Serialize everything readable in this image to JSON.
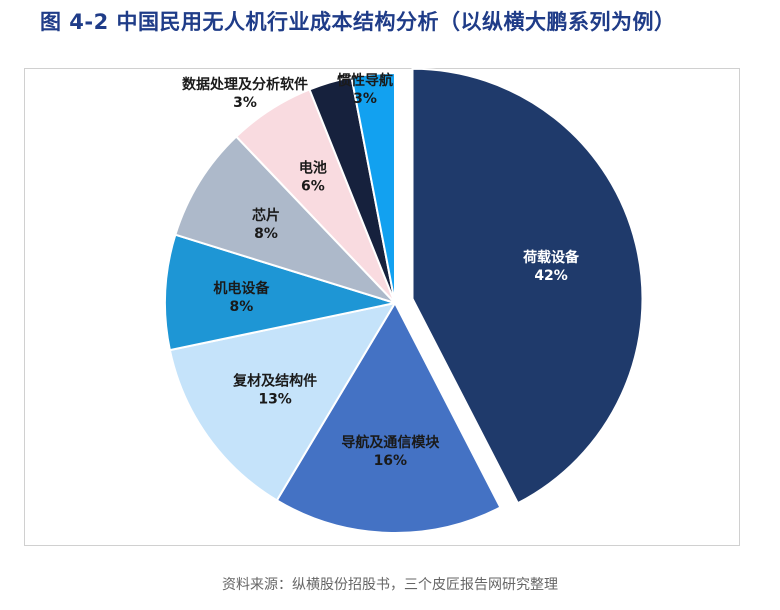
{
  "title": "图 4-2 中国民用无人机行业成本结构分析（以纵横大鹏系列为例）",
  "source": "资料来源：纵横股份招股书，三个皮匠报告网研究整理",
  "chart_data": {
    "type": "pie",
    "unit": "%",
    "slices": [
      {
        "name": "荷载设备",
        "value": 42,
        "value_label": "42%",
        "color": "#1f3a6b",
        "exploded": true
      },
      {
        "name": "导航及通信模块",
        "value": 16,
        "value_label": "16%",
        "color": "#4472c4",
        "exploded": false
      },
      {
        "name": "复材及结构件",
        "value": 13,
        "value_label": "13%",
        "color": "#c5e3fa",
        "exploded": false
      },
      {
        "name": "机电设备",
        "value": 8,
        "value_label": "8%",
        "color": "#1e96d5",
        "exploded": false
      },
      {
        "name": "芯片",
        "value": 8,
        "value_label": "8%",
        "color": "#adb9ca",
        "exploded": false
      },
      {
        "name": "电池",
        "value": 6,
        "value_label": "6%",
        "color": "#f9dbe0",
        "exploded": false
      },
      {
        "name": "数据处理及分析软件",
        "value": 3,
        "value_label": "3%",
        "color": "#16213d",
        "exploded": false
      },
      {
        "name": "惯性导航",
        "value": 3,
        "value_label": "3%",
        "color": "#12a1f0",
        "exploded": false
      }
    ]
  }
}
